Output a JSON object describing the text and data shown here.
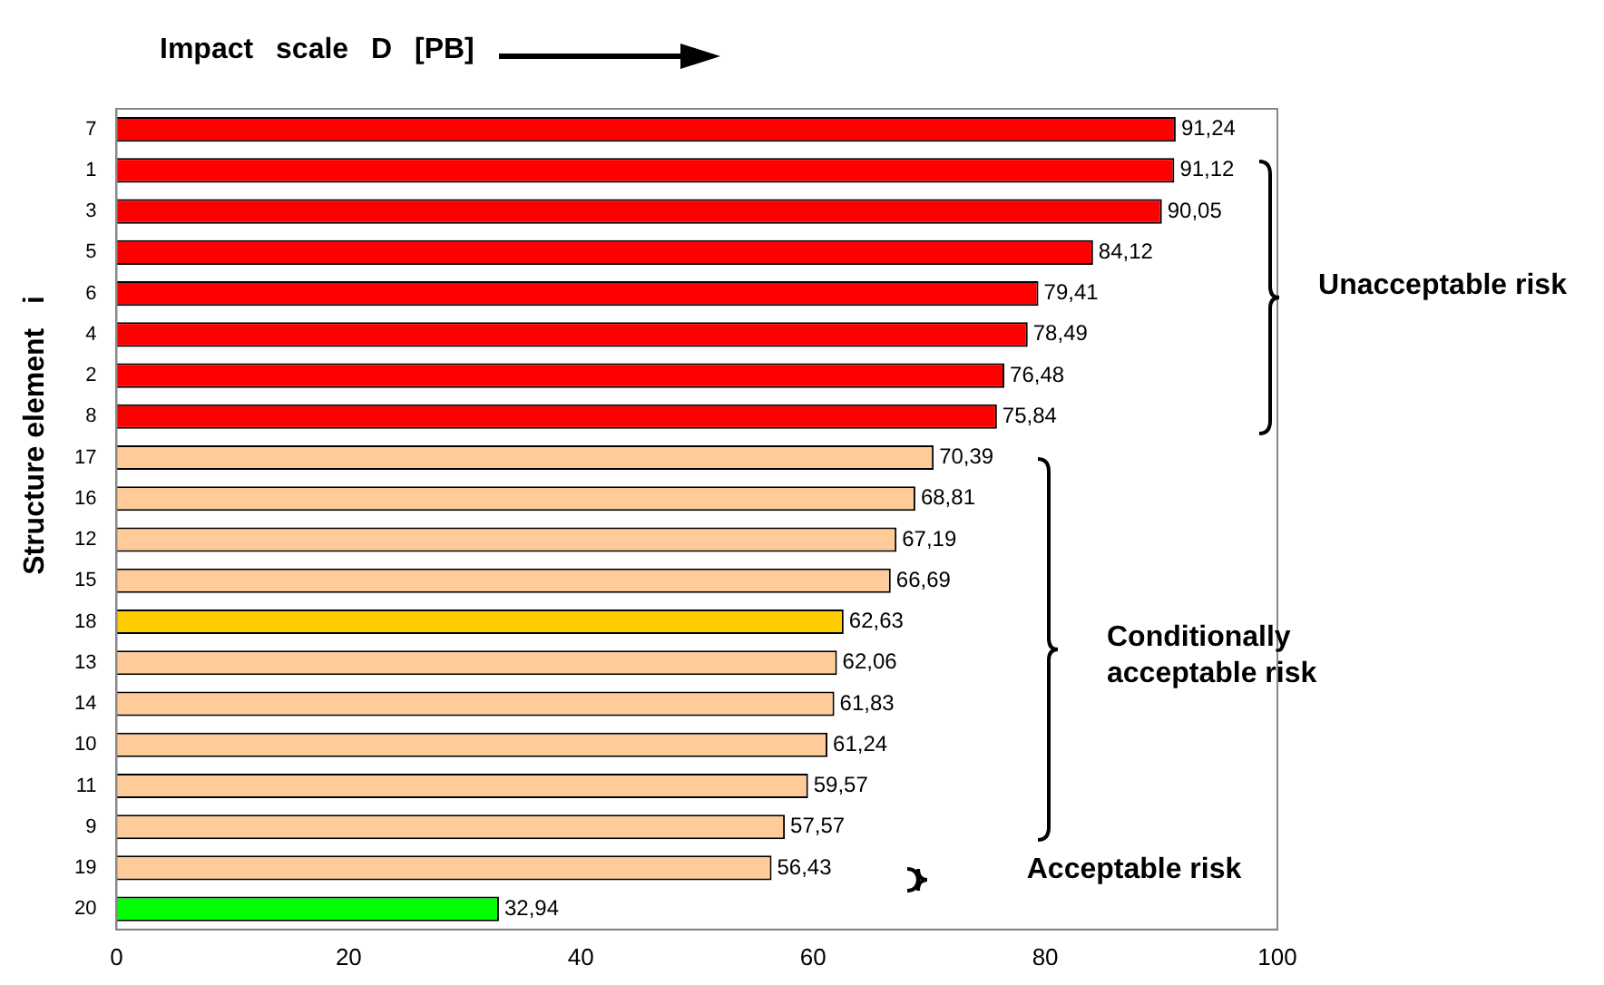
{
  "chart_data": {
    "type": "bar",
    "orientation": "horizontal",
    "xlabel": "Impact scale D [PB]",
    "ylabel": "Structure element   i",
    "categories": [
      "7",
      "1",
      "3",
      "5",
      "6",
      "4",
      "2",
      "8",
      "17",
      "16",
      "12",
      "15",
      "18",
      "13",
      "14",
      "10",
      "11",
      "9",
      "19",
      "20"
    ],
    "values": [
      91.24,
      91.12,
      90.05,
      84.12,
      79.41,
      78.49,
      76.48,
      75.84,
      70.39,
      68.81,
      67.19,
      66.69,
      62.63,
      62.06,
      61.83,
      61.24,
      59.57,
      57.57,
      56.43,
      32.94
    ],
    "value_labels": [
      "91,24",
      "91,12",
      "90,05",
      "84,12",
      "79,41",
      "78,49",
      "76,48",
      "75,84",
      "70,39",
      "68,81",
      "67,19",
      "66,69",
      "62,63",
      "62,06",
      "61,83",
      "61,24",
      "59,57",
      "57,57",
      "56,43",
      "32,94"
    ],
    "colors": [
      "#ff0000",
      "#ff0000",
      "#ff0000",
      "#ff0000",
      "#ff0000",
      "#ff0000",
      "#ff0000",
      "#ff0000",
      "#ffcc99",
      "#ffcc99",
      "#ffcc99",
      "#ffcc99",
      "#ffcc00",
      "#ffcc99",
      "#ffcc99",
      "#ffcc99",
      "#ffcc99",
      "#ffcc99",
      "#ffcc99",
      "#00ff00"
    ],
    "xlim": [
      0,
      100
    ],
    "xticks": [
      0,
      20,
      40,
      60,
      80,
      100
    ],
    "grid": false,
    "legend": false,
    "annotations": [
      "Unacceptable risk",
      "Conditionally acceptable risk",
      "Acceptable risk"
    ]
  }
}
